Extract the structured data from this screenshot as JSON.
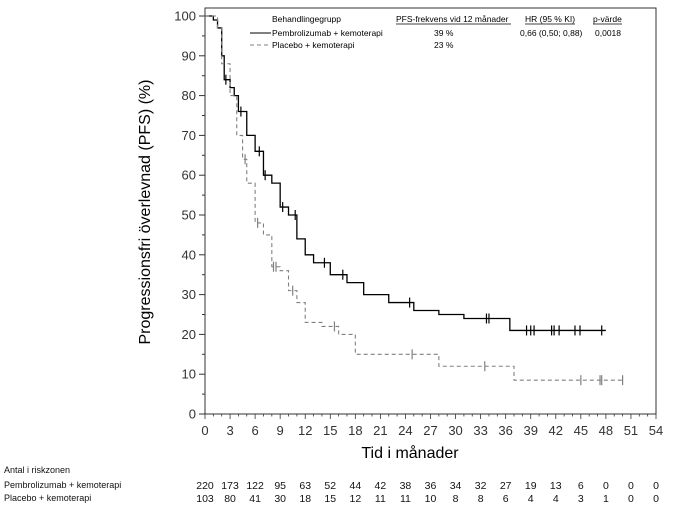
{
  "chart_data": {
    "type": "line",
    "subtype": "kaplan-meier",
    "title": "",
    "xlabel": "Tid i månader",
    "ylabel": "Progressionsfri överlevnad (PFS) (%)",
    "xlim": [
      0,
      54
    ],
    "ylim": [
      0,
      100
    ],
    "xticks": [
      0,
      3,
      6,
      9,
      12,
      15,
      18,
      21,
      24,
      27,
      30,
      33,
      36,
      39,
      42,
      45,
      48,
      51,
      54
    ],
    "yticks": [
      0,
      10,
      20,
      30,
      40,
      50,
      60,
      70,
      80,
      90,
      100
    ],
    "grid": false,
    "legend": {
      "placement": "top-right",
      "headers": {
        "group": "Behandlingegrupp",
        "pfs": "PFS-frekvens vid 12 månader",
        "hr": "HR (95 % KI)",
        "p": "p-värde"
      },
      "rows": [
        {
          "name": "Pembrolizumab + kemoterapi",
          "line_style": "solid",
          "pfs": "39 %",
          "hr": "0,66 (0,50; 0,88)",
          "p": "0,0018"
        },
        {
          "name": "Placebo + kemoterapi",
          "line_style": "dashed",
          "pfs": "23 %",
          "hr": "",
          "p": ""
        }
      ]
    },
    "series": [
      {
        "name": "Pembrolizumab + kemoterapi",
        "color": "#000000",
        "style": "solid",
        "points": [
          [
            0,
            100
          ],
          [
            1,
            99
          ],
          [
            1.5,
            97
          ],
          [
            2,
            90
          ],
          [
            2.3,
            84
          ],
          [
            3,
            82
          ],
          [
            3.5,
            80
          ],
          [
            4,
            76
          ],
          [
            5,
            70
          ],
          [
            6,
            66
          ],
          [
            7,
            60
          ],
          [
            8,
            58
          ],
          [
            9,
            52
          ],
          [
            10,
            50
          ],
          [
            11,
            44
          ],
          [
            12,
            40
          ],
          [
            13,
            38
          ],
          [
            15,
            35
          ],
          [
            17,
            33
          ],
          [
            19,
            30
          ],
          [
            22,
            28
          ],
          [
            25,
            26
          ],
          [
            28,
            25
          ],
          [
            31,
            24
          ],
          [
            36,
            24
          ],
          [
            36.5,
            21
          ],
          [
            48,
            21
          ]
        ],
        "censored": [
          2.5,
          4.3,
          6.5,
          7.2,
          9.3,
          10.8,
          14.3,
          16.5,
          24.5,
          33.7,
          34,
          38.5,
          39,
          39.4,
          41.5,
          41.8,
          42.4,
          44.3,
          44.9,
          47.5
        ]
      },
      {
        "name": "Placebo + kemoterapi",
        "color": "#808080",
        "style": "dashed",
        "points": [
          [
            0,
            100
          ],
          [
            1.5,
            97
          ],
          [
            2,
            88
          ],
          [
            3,
            80
          ],
          [
            3.8,
            70
          ],
          [
            4.5,
            64
          ],
          [
            5,
            58
          ],
          [
            6,
            48
          ],
          [
            7,
            45
          ],
          [
            8,
            37
          ],
          [
            9,
            36
          ],
          [
            10,
            31
          ],
          [
            11,
            28
          ],
          [
            12,
            23
          ],
          [
            14,
            22
          ],
          [
            16,
            20
          ],
          [
            18,
            15
          ],
          [
            24,
            15
          ],
          [
            28,
            12
          ],
          [
            33,
            12
          ],
          [
            37,
            8.5
          ],
          [
            50,
            8.5
          ]
        ],
        "censored": [
          4.8,
          6.3,
          8.2,
          8.5,
          10.5,
          15.5,
          24.8,
          33.5,
          45,
          47.3,
          47.5,
          50
        ]
      }
    ],
    "risk_table": {
      "title": "Antal i riskzonen",
      "times": [
        0,
        3,
        6,
        9,
        12,
        15,
        18,
        21,
        24,
        27,
        30,
        33,
        36,
        39,
        42,
        45,
        48,
        51,
        54
      ],
      "rows": [
        {
          "name": "Pembrolizumab + kemoterapi",
          "values": [
            220,
            173,
            122,
            95,
            63,
            52,
            44,
            42,
            38,
            36,
            34,
            32,
            27,
            19,
            13,
            6,
            0,
            0,
            0
          ]
        },
        {
          "name": "Placebo + kemoterapi",
          "values": [
            103,
            80,
            41,
            30,
            18,
            15,
            12,
            11,
            11,
            10,
            8,
            8,
            6,
            4,
            4,
            3,
            1,
            0,
            0
          ]
        }
      ]
    }
  }
}
